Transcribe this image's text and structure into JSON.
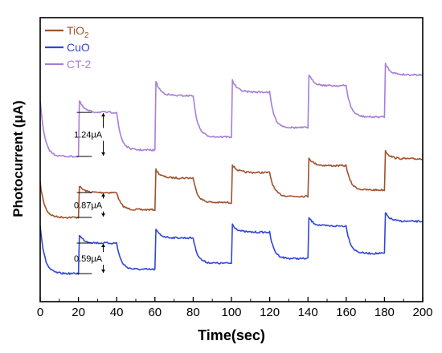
{
  "chart_data": {
    "type": "line",
    "title": "",
    "xlabel": "Time(sec)",
    "ylabel": "Photocurrent (μA)",
    "xlim": [
      0,
      200
    ],
    "xticks": [
      0,
      20,
      40,
      60,
      80,
      100,
      120,
      140,
      160,
      180,
      200
    ],
    "ytick_labels_shown": false,
    "grid": false,
    "legend_position": "top-left",
    "light_on_intervals": [
      [
        20,
        40
      ],
      [
        60,
        80
      ],
      [
        100,
        120
      ],
      [
        140,
        160
      ],
      [
        180,
        200
      ]
    ],
    "series": [
      {
        "name": "TiO2",
        "legend_label": "TiO",
        "legend_subscript": "2",
        "color": "#a0522d",
        "levels": [
          {
            "t_on": 20,
            "dark": 0.0,
            "light": 0.87
          },
          {
            "t_on": 60,
            "dark": 0.27,
            "light": 1.38
          },
          {
            "t_on": 100,
            "dark": 0.52,
            "light": 1.57
          },
          {
            "t_on": 140,
            "dark": 0.74,
            "light": 1.81
          },
          {
            "t_on": 180,
            "dark": 0.96,
            "light": 2.05
          }
        ]
      },
      {
        "name": "CuO",
        "legend_label": "CuO",
        "color": "#3146d8",
        "levels": [
          {
            "t_on": 20,
            "dark": 0.0,
            "light": 0.59
          },
          {
            "t_on": 60,
            "dark": 0.08,
            "light": 0.69
          },
          {
            "t_on": 100,
            "dark": 0.2,
            "light": 0.8
          },
          {
            "t_on": 140,
            "dark": 0.29,
            "light": 0.92
          },
          {
            "t_on": 180,
            "dark": 0.39,
            "light": 1.01
          }
        ]
      },
      {
        "name": "CT-2",
        "legend_label": "CT-2",
        "color": "#a77ed8",
        "levels": [
          {
            "t_on": 20,
            "dark": 0.0,
            "light": 1.24
          },
          {
            "t_on": 60,
            "dark": 0.18,
            "light": 1.71
          },
          {
            "t_on": 100,
            "dark": 0.55,
            "light": 1.81
          },
          {
            "t_on": 140,
            "dark": 0.81,
            "light": 1.99
          },
          {
            "t_on": 180,
            "dark": 1.11,
            "light": 2.3
          }
        ]
      }
    ],
    "annotations": [
      {
        "series": "CT-2",
        "text": "1.24μA"
      },
      {
        "series": "TiO2",
        "text": "0.87μA"
      },
      {
        "series": "CuO",
        "text": "0.59μA"
      }
    ]
  }
}
